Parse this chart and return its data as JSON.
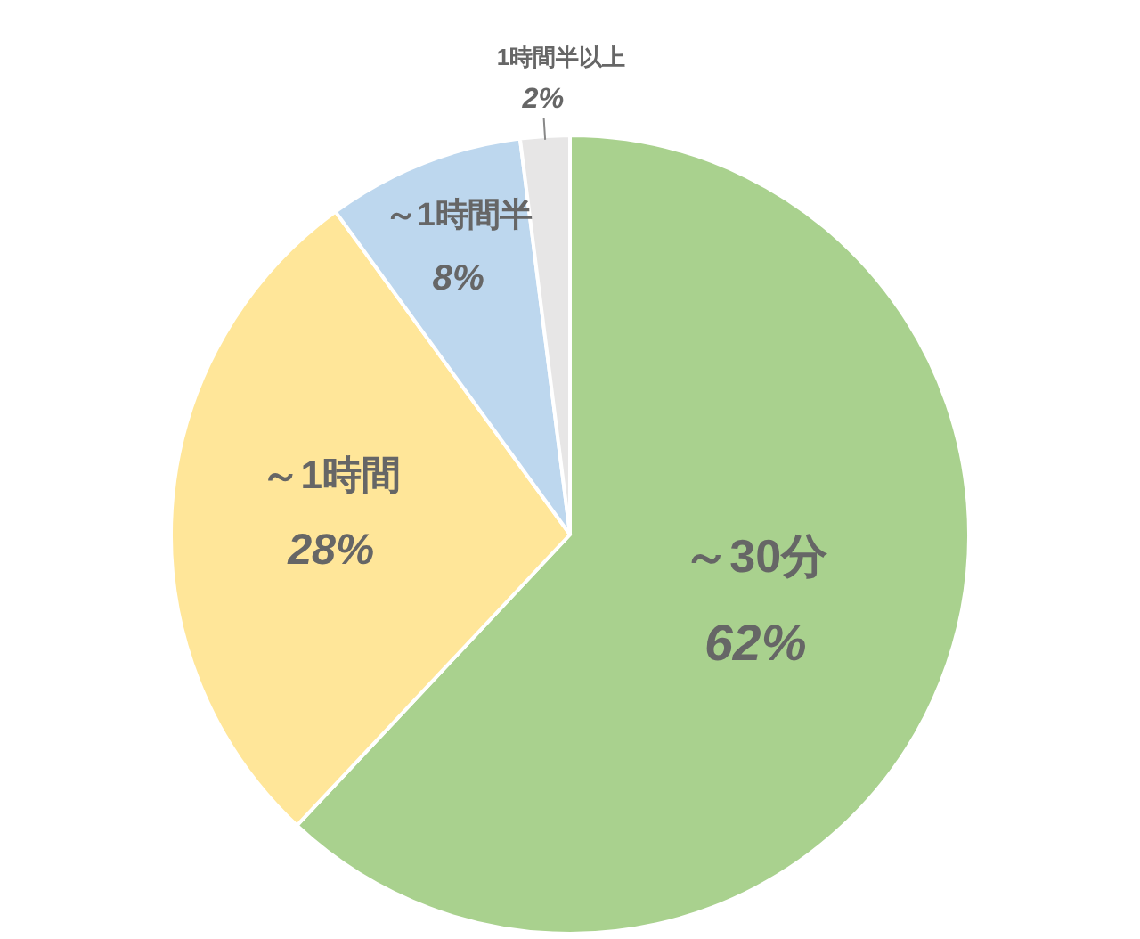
{
  "chart_data": {
    "type": "pie",
    "categories": [
      "～30分",
      "～1時間",
      "～1時間半",
      "1時間半以上"
    ],
    "values": [
      62,
      28,
      8,
      2
    ],
    "value_labels": [
      "62%",
      "28%",
      "8%",
      "2%"
    ],
    "colors": [
      "#a9d18e",
      "#ffe699",
      "#bdd7ee",
      "#e7e6e6"
    ]
  }
}
